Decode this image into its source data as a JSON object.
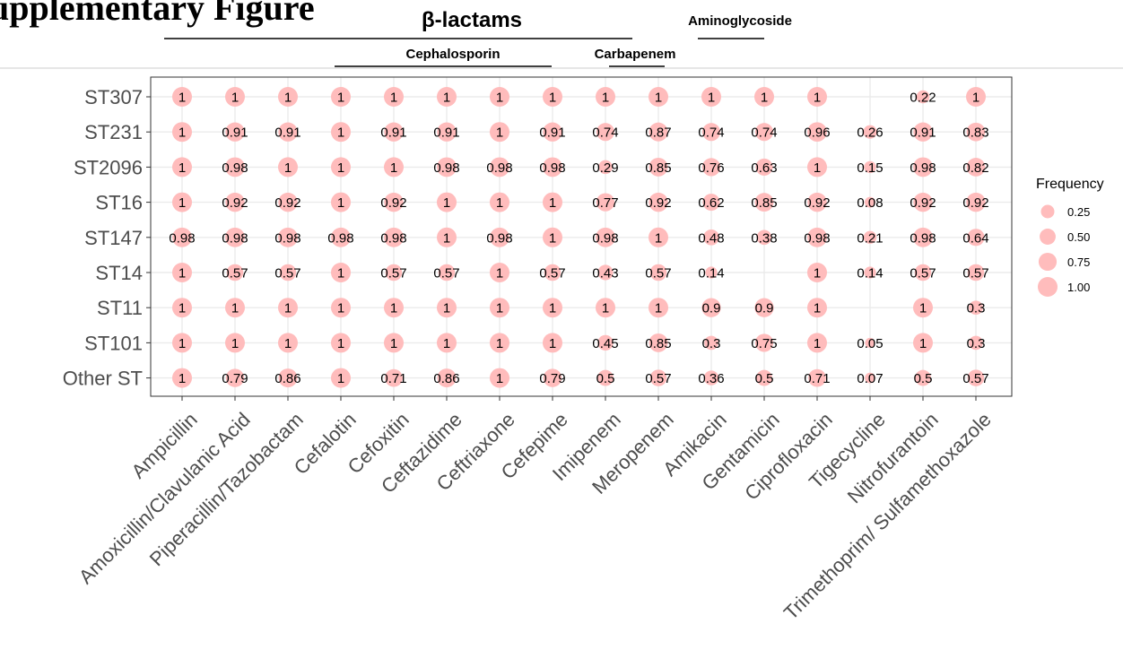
{
  "header_title": "upplementary Figure",
  "groups": [
    {
      "label": "β-lactams",
      "size": "big",
      "from": 0,
      "to": 9
    },
    {
      "label": "Cephalosporin",
      "size": "small",
      "from": 3,
      "to": 7
    },
    {
      "label": "Carbapenem",
      "size": "small",
      "from": 8,
      "to": 9
    },
    {
      "label": "Aminoglycoside",
      "size": "small",
      "from": 10,
      "to": 11
    }
  ],
  "colors": {
    "point": "#ffbcbc",
    "grid": "#ebebeb",
    "panel_border": "#333333",
    "divider": "#cccccc"
  },
  "chart_data": {
    "type": "scatter",
    "x_categories": [
      "Ampicillin",
      "Amoxicillin/Clavulanic Acid",
      "Piperacillin/Tazobactam",
      "Cefalotin",
      "Cefoxitin",
      "Ceftazidime",
      "Ceftriaxone",
      "Cefepime",
      "Imipenem",
      "Meropenem",
      "Amikacin",
      "Gentamicin",
      "Ciprofloxacin",
      "Tigecycline",
      "Nitrofurantoin",
      "Trimethoprim/ Sulfamethoxazole"
    ],
    "y_categories": [
      "ST307",
      "ST231",
      "ST2096",
      "ST16",
      "ST147",
      "ST14",
      "ST11",
      "ST101",
      "Other ST"
    ],
    "values": [
      [
        1,
        1,
        1,
        1,
        1,
        1,
        1,
        1,
        1,
        1,
        1,
        1,
        1,
        null,
        0.22,
        1
      ],
      [
        1,
        0.91,
        0.91,
        1,
        0.91,
        0.91,
        1,
        0.91,
        0.74,
        0.87,
        0.74,
        0.74,
        0.96,
        0.26,
        0.91,
        0.83
      ],
      [
        1,
        0.98,
        1,
        1,
        1,
        0.98,
        0.98,
        0.98,
        0.29,
        0.85,
        0.76,
        0.63,
        1,
        0.15,
        0.98,
        0.82
      ],
      [
        1,
        0.92,
        0.92,
        1,
        0.92,
        1,
        1,
        1,
        0.77,
        0.92,
        0.62,
        0.85,
        0.92,
        0.08,
        0.92,
        0.92
      ],
      [
        0.98,
        0.98,
        0.98,
        0.98,
        0.98,
        1,
        0.98,
        1,
        0.98,
        1,
        0.48,
        0.38,
        0.98,
        0.21,
        0.98,
        0.64
      ],
      [
        1,
        0.57,
        0.57,
        1,
        0.57,
        0.57,
        1,
        0.57,
        0.43,
        0.57,
        0.14,
        null,
        1,
        0.14,
        0.57,
        0.57
      ],
      [
        1,
        1,
        1,
        1,
        1,
        1,
        1,
        1,
        1,
        1,
        0.9,
        0.9,
        1,
        null,
        1,
        0.3
      ],
      [
        1,
        1,
        1,
        1,
        1,
        1,
        1,
        1,
        0.45,
        0.85,
        0.3,
        0.75,
        1,
        0.05,
        1,
        0.3
      ],
      [
        1,
        0.79,
        0.86,
        1,
        0.71,
        0.86,
        1,
        0.79,
        0.5,
        0.57,
        0.36,
        0.5,
        0.71,
        0.07,
        0.5,
        0.57
      ]
    ],
    "point_size_encodes": "value",
    "legend": {
      "title": "Frequency",
      "values": [
        0.25,
        0.5,
        0.75,
        1.0
      ],
      "labels": [
        "0.25",
        "0.50",
        "0.75",
        "1.00"
      ],
      "placement": "right"
    },
    "grid": true,
    "title": "",
    "xlabel": "",
    "ylabel": ""
  }
}
